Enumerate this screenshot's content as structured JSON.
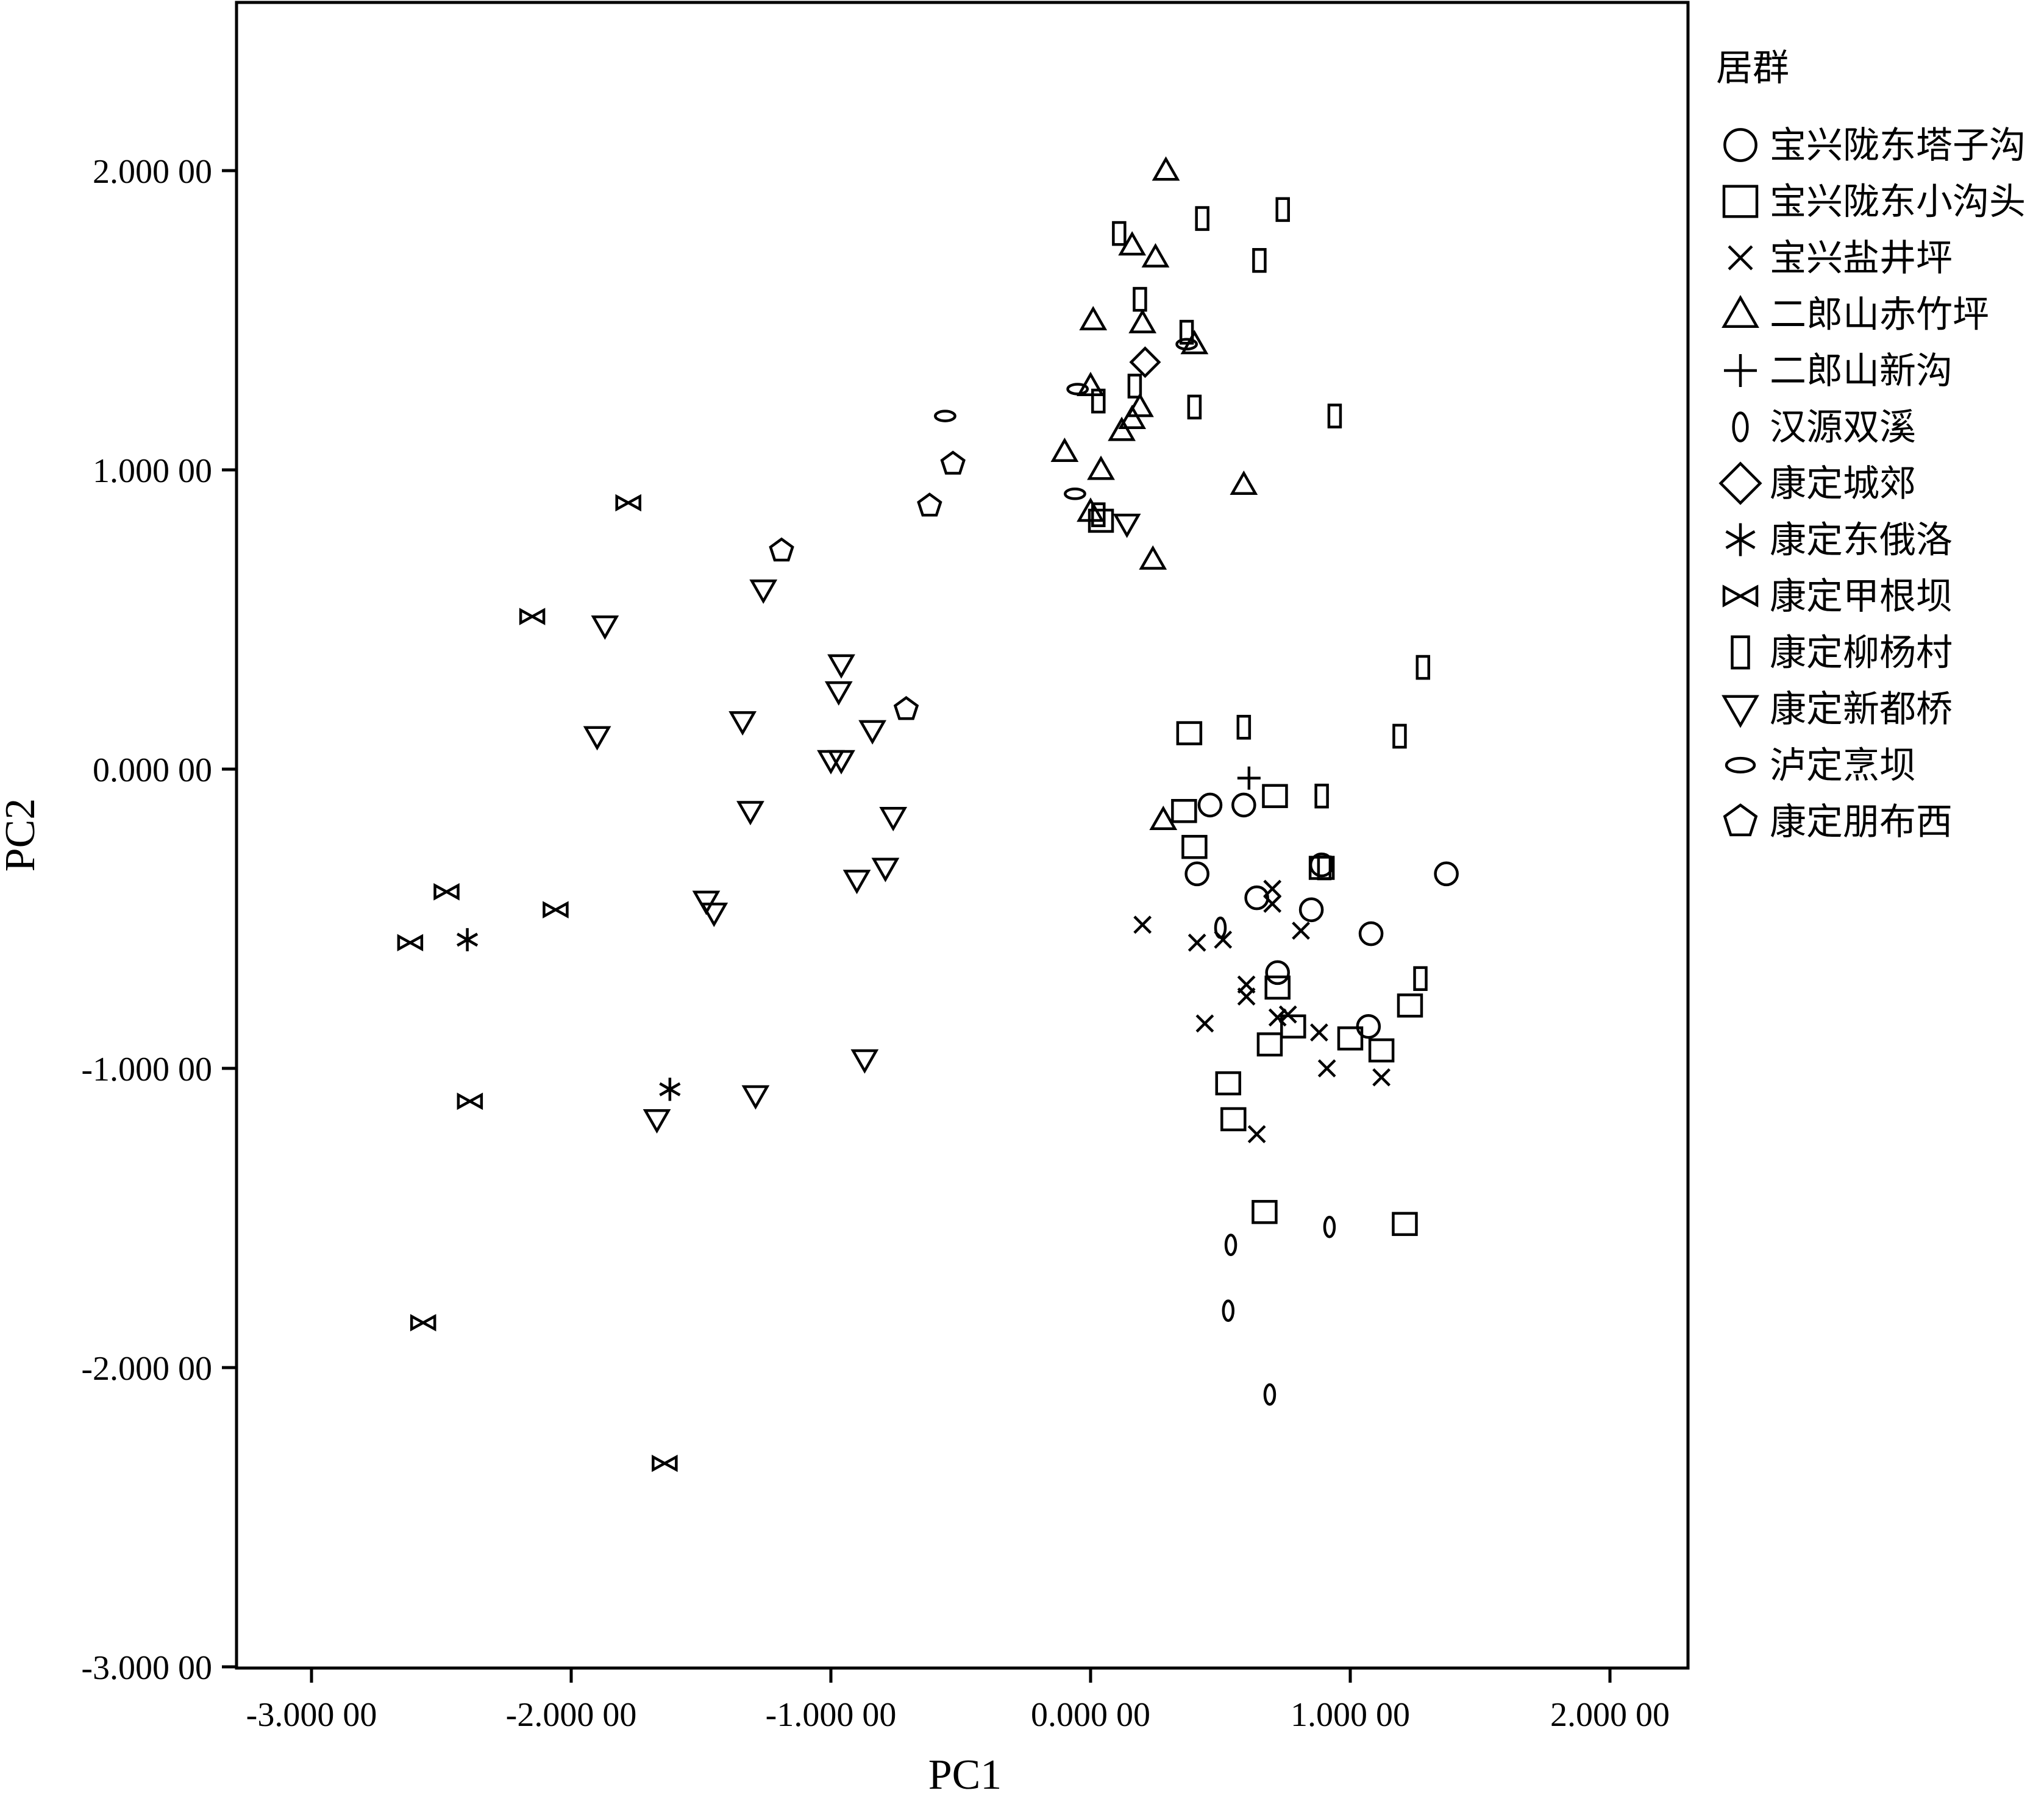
{
  "chart_data": {
    "type": "scatter",
    "title": "",
    "xlabel": "PC1",
    "ylabel": "PC2",
    "xlim": [
      -3.3,
      2.3
    ],
    "ylim": [
      -3.0,
      2.5
    ],
    "xticks": [
      -3,
      -2,
      -1,
      0,
      1,
      2
    ],
    "yticks": [
      -3,
      -2,
      -1,
      0,
      1,
      2
    ],
    "xtick_labels": [
      "-3.000 00",
      "-2.000 00",
      "-1.000 00",
      "0.000 00",
      "1.000 00",
      "2.000 00"
    ],
    "ytick_labels": [
      "-3.000 00",
      "-2.000 00",
      "-1.000 00",
      "0.000 00",
      "1.000 00",
      "2.000 00"
    ],
    "grid": false,
    "legend_title": "居群",
    "legend_position": "right",
    "series": [
      {
        "name": "宝兴陇东塔子沟",
        "marker": "circle",
        "points": [
          [
            0.46,
            -0.12
          ],
          [
            0.59,
            -0.12
          ],
          [
            0.41,
            -0.35
          ],
          [
            0.64,
            -0.43
          ],
          [
            0.85,
            -0.47
          ],
          [
            1.37,
            -0.35
          ],
          [
            1.08,
            -0.55
          ],
          [
            0.72,
            -0.68
          ],
          [
            1.07,
            -0.86
          ],
          [
            0.89,
            -0.32
          ]
        ]
      },
      {
        "name": "宝兴陇东小沟头",
        "marker": "square",
        "points": [
          [
            0.38,
            0.12
          ],
          [
            0.36,
            -0.14
          ],
          [
            0.4,
            -0.26
          ],
          [
            0.71,
            -0.09
          ],
          [
            0.89,
            -0.33
          ],
          [
            0.72,
            -0.73
          ],
          [
            0.78,
            -0.86
          ],
          [
            0.69,
            -0.92
          ],
          [
            0.53,
            -1.05
          ],
          [
            0.55,
            -1.17
          ],
          [
            1.0,
            -0.9
          ],
          [
            1.12,
            -0.94
          ],
          [
            1.23,
            -0.79
          ],
          [
            0.67,
            -1.48
          ],
          [
            1.21,
            -1.52
          ],
          [
            0.04,
            0.83
          ]
        ]
      },
      {
        "name": "宝兴盐井坪",
        "marker": "x",
        "points": [
          [
            0.2,
            -0.52
          ],
          [
            0.41,
            -0.58
          ],
          [
            0.51,
            -0.57
          ],
          [
            0.6,
            -0.72
          ],
          [
            0.6,
            -0.76
          ],
          [
            0.7,
            -0.4
          ],
          [
            0.7,
            -0.45
          ],
          [
            0.72,
            -0.83
          ],
          [
            0.81,
            -0.54
          ],
          [
            0.44,
            -0.85
          ],
          [
            0.88,
            -0.88
          ],
          [
            0.91,
            -1.0
          ],
          [
            1.12,
            -1.03
          ],
          [
            0.64,
            -1.22
          ],
          [
            0.76,
            -0.82
          ]
        ]
      },
      {
        "name": "二郎山赤竹坪",
        "marker": "triangle",
        "points": [
          [
            0.29,
            2.0
          ],
          [
            0.16,
            1.75
          ],
          [
            0.25,
            1.71
          ],
          [
            0.01,
            1.5
          ],
          [
            0.2,
            1.49
          ],
          [
            0.4,
            1.42
          ],
          [
            0.0,
            1.28
          ],
          [
            0.19,
            1.21
          ],
          [
            0.16,
            1.17
          ],
          [
            0.12,
            1.13
          ],
          [
            -0.1,
            1.06
          ],
          [
            0.04,
            1.0
          ],
          [
            0.59,
            0.95
          ],
          [
            0.0,
            0.86
          ],
          [
            0.24,
            0.7
          ],
          [
            0.28,
            -0.17
          ]
        ]
      },
      {
        "name": "二郎山新沟",
        "marker": "plus",
        "points": [
          [
            0.61,
            -0.03
          ]
        ]
      },
      {
        "name": "汉源双溪",
        "marker": "ellipse-v",
        "points": [
          [
            0.5,
            -0.53
          ],
          [
            0.54,
            -1.59
          ],
          [
            0.53,
            -1.81
          ],
          [
            0.92,
            -1.53
          ],
          [
            0.69,
            -2.09
          ]
        ]
      },
      {
        "name": "康定城郊",
        "marker": "diamond",
        "points": [
          [
            0.21,
            1.36
          ]
        ]
      },
      {
        "name": "康定东俄洛",
        "marker": "star",
        "points": [
          [
            -2.4,
            -0.57
          ],
          [
            -1.62,
            -1.07
          ]
        ]
      },
      {
        "name": "康定甲根坝",
        "marker": "bowtie",
        "points": [
          [
            -1.78,
            0.89
          ],
          [
            -2.15,
            0.51
          ],
          [
            -2.48,
            -0.41
          ],
          [
            -2.62,
            -0.58
          ],
          [
            -2.06,
            -0.47
          ],
          [
            -2.39,
            -1.11
          ],
          [
            -2.57,
            -1.85
          ],
          [
            -1.64,
            -2.32
          ]
        ]
      },
      {
        "name": "康定柳杨村",
        "marker": "rect-v",
        "points": [
          [
            0.11,
            1.79
          ],
          [
            0.43,
            1.84
          ],
          [
            0.74,
            1.87
          ],
          [
            0.65,
            1.7
          ],
          [
            0.19,
            1.57
          ],
          [
            0.37,
            1.46
          ],
          [
            0.17,
            1.28
          ],
          [
            0.03,
            1.23
          ],
          [
            0.4,
            1.21
          ],
          [
            0.94,
            1.18
          ],
          [
            0.03,
            0.85
          ],
          [
            1.28,
            0.34
          ],
          [
            0.59,
            0.14
          ],
          [
            1.19,
            0.11
          ],
          [
            0.89,
            -0.09
          ],
          [
            0.9,
            -0.33
          ],
          [
            1.27,
            -0.7
          ]
        ]
      },
      {
        "name": "康定新都桥",
        "marker": "triangle-down",
        "points": [
          [
            -1.26,
            0.6
          ],
          [
            -1.87,
            0.48
          ],
          [
            -0.96,
            0.35
          ],
          [
            -0.97,
            0.26
          ],
          [
            -1.34,
            0.16
          ],
          [
            -1.9,
            0.11
          ],
          [
            -1.0,
            0.03
          ],
          [
            -0.96,
            0.03
          ],
          [
            -0.84,
            0.13
          ],
          [
            -1.31,
            -0.14
          ],
          [
            -0.76,
            -0.16
          ],
          [
            -0.79,
            -0.33
          ],
          [
            -0.9,
            -0.37
          ],
          [
            -1.48,
            -0.44
          ],
          [
            -1.45,
            -0.48
          ],
          [
            -0.87,
            -0.97
          ],
          [
            -1.29,
            -1.09
          ],
          [
            -1.67,
            -1.17
          ],
          [
            0.14,
            0.82
          ]
        ]
      },
      {
        "name": "泸定烹坝",
        "marker": "ellipse-h",
        "points": [
          [
            -0.56,
            1.18
          ],
          [
            -0.05,
            1.27
          ],
          [
            -0.06,
            0.92
          ],
          [
            0.37,
            1.42
          ]
        ]
      },
      {
        "name": "康定朋布西",
        "marker": "pentagon",
        "points": [
          [
            -0.53,
            1.02
          ],
          [
            -0.62,
            0.88
          ],
          [
            -1.19,
            0.73
          ],
          [
            -0.71,
            0.2
          ]
        ]
      }
    ]
  }
}
